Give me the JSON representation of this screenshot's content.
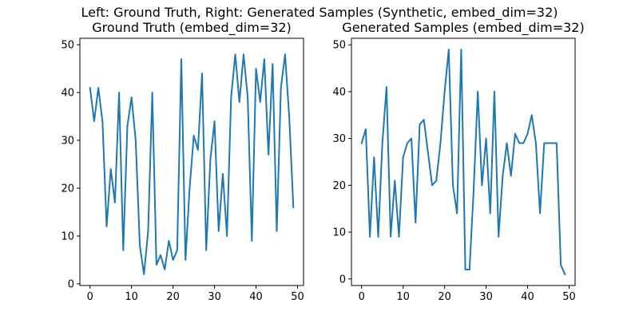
{
  "figure": {
    "suptitle": "Left: Ground Truth, Right: Generated Samples (Synthetic, embed_dim=32)"
  },
  "chart_data": [
    {
      "type": "line",
      "title": "Ground Truth (embed_dim=32)",
      "xlabel": "",
      "ylabel": "",
      "xlim": [
        -2.45,
        51.45
      ],
      "ylim": [
        -0.35,
        51.35
      ],
      "xticks": [
        0,
        10,
        20,
        30,
        40,
        50
      ],
      "yticks": [
        0,
        10,
        20,
        30,
        40,
        50
      ],
      "grid": false,
      "color": "#1f77b4",
      "series": [
        {
          "x": [
            0,
            1,
            2,
            3,
            4,
            5,
            6,
            7,
            8,
            9,
            10,
            11,
            12,
            13,
            14,
            15,
            16,
            17,
            18,
            19,
            20,
            21,
            22,
            23,
            24,
            25,
            26,
            27,
            28,
            29,
            30,
            31,
            32,
            33,
            34,
            35,
            36,
            37,
            38,
            39,
            40,
            41,
            42,
            43,
            44,
            45,
            46,
            47,
            48,
            49
          ],
          "values": [
            41,
            34,
            41,
            34,
            12,
            24,
            17,
            40,
            7,
            33,
            39,
            30,
            8,
            2,
            11,
            40,
            4,
            6,
            3,
            9,
            5,
            7,
            47,
            5,
            20,
            31,
            28,
            44,
            7,
            26,
            34,
            11,
            23,
            10,
            39,
            48,
            38,
            48,
            39,
            9,
            45,
            38,
            47,
            27,
            46,
            11,
            41,
            48,
            35,
            16
          ]
        }
      ]
    },
    {
      "type": "line",
      "title": "Generated Samples (embed_dim=32)",
      "xlabel": "",
      "ylabel": "",
      "xlim": [
        -2.45,
        51.45
      ],
      "ylim": [
        -1.4,
        51.4
      ],
      "xticks": [
        0,
        10,
        20,
        30,
        40,
        50
      ],
      "yticks": [
        0,
        10,
        20,
        30,
        40,
        50
      ],
      "grid": false,
      "color": "#1f77b4",
      "series": [
        {
          "x": [
            0,
            1,
            2,
            3,
            4,
            5,
            6,
            7,
            8,
            9,
            10,
            11,
            12,
            13,
            14,
            15,
            16,
            17,
            18,
            19,
            20,
            21,
            22,
            23,
            24,
            25,
            26,
            27,
            28,
            29,
            30,
            31,
            32,
            33,
            34,
            35,
            36,
            37,
            38,
            39,
            40,
            41,
            42,
            43,
            44,
            45,
            46,
            47,
            48,
            49
          ],
          "values": [
            29,
            32,
            9,
            26,
            9,
            29,
            41,
            9,
            21,
            9,
            26,
            29,
            30,
            12,
            33,
            34,
            27,
            20,
            21,
            29,
            40,
            49,
            20,
            14,
            49,
            2,
            2,
            19,
            40,
            20,
            30,
            14,
            40,
            9,
            22,
            29,
            22,
            31,
            29,
            29,
            31,
            35,
            29,
            14,
            29,
            29,
            29,
            29,
            3,
            1
          ]
        }
      ]
    }
  ]
}
